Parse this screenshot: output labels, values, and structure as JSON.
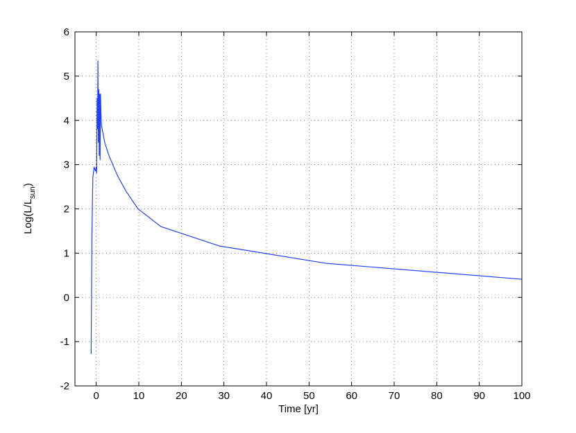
{
  "chart_data": {
    "type": "line",
    "xlabel": "Time [yr]",
    "ylabel": {
      "main": "Log(L/L",
      "sub": "sun",
      "end": ")"
    },
    "xlim": [
      -5,
      100
    ],
    "ylim": [
      -2,
      6
    ],
    "xticks": [
      0,
      10,
      20,
      30,
      40,
      50,
      60,
      70,
      80,
      90,
      100
    ],
    "yticks": [
      -2,
      -1,
      0,
      1,
      2,
      3,
      4,
      5,
      6
    ],
    "grid": true,
    "series": [
      {
        "color": "#2040ff",
        "x": [
          -1.2,
          -1.0,
          -0.8,
          -0.5,
          -0.2,
          0,
          0.1,
          0.2,
          0.3,
          0.4,
          0.5,
          0.6,
          0.7,
          0.8,
          0.9,
          1.0,
          1.2,
          2,
          3,
          5,
          7,
          9.8,
          15.2,
          29,
          54,
          100
        ],
        "values": [
          -1.28,
          1.5,
          2.7,
          2.95,
          2.85,
          2.95,
          2.8,
          4.5,
          3.8,
          5.35,
          3.5,
          4.7,
          3.2,
          4.6,
          3.1,
          4.6,
          3.9,
          3.5,
          3.2,
          2.75,
          2.4,
          2.0,
          1.6,
          1.16,
          0.77,
          0.41
        ]
      }
    ]
  }
}
